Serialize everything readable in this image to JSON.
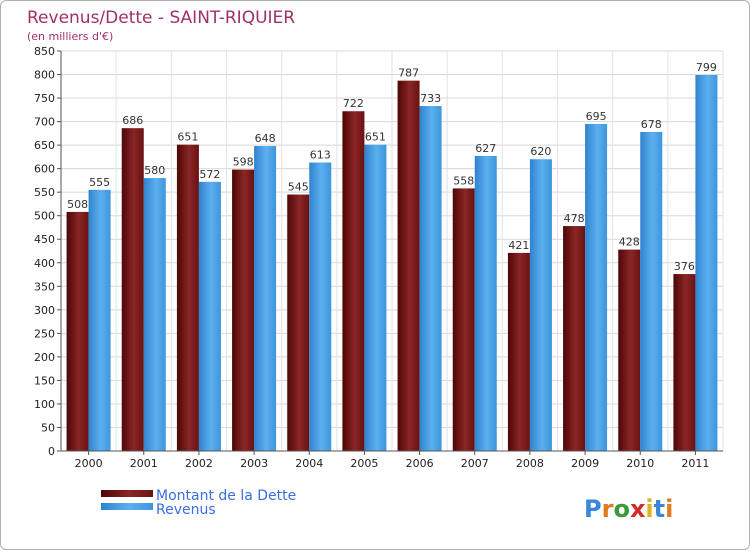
{
  "chart_data": {
    "type": "bar",
    "title": "Revenus/Dette - SAINT-RIQUIER",
    "subtitle": "(en milliers d'€)",
    "categories": [
      "2000",
      "2001",
      "2002",
      "2003",
      "2004",
      "2005",
      "2006",
      "2007",
      "2008",
      "2009",
      "2010",
      "2011"
    ],
    "series": [
      {
        "name": "Montant de la Dette",
        "color": "#7a1a1a",
        "values": [
          508,
          686,
          651,
          598,
          545,
          722,
          787,
          558,
          421,
          478,
          428,
          376
        ]
      },
      {
        "name": "Revenus",
        "color": "#4aa3e6",
        "values": [
          555,
          580,
          572,
          648,
          613,
          651,
          733,
          627,
          620,
          695,
          678,
          799
        ]
      }
    ],
    "ylim": [
      0,
      850
    ],
    "ytick_step": 50,
    "grid": true,
    "legend_position": "bottom-left"
  },
  "logo": {
    "text": "Proxiti"
  }
}
